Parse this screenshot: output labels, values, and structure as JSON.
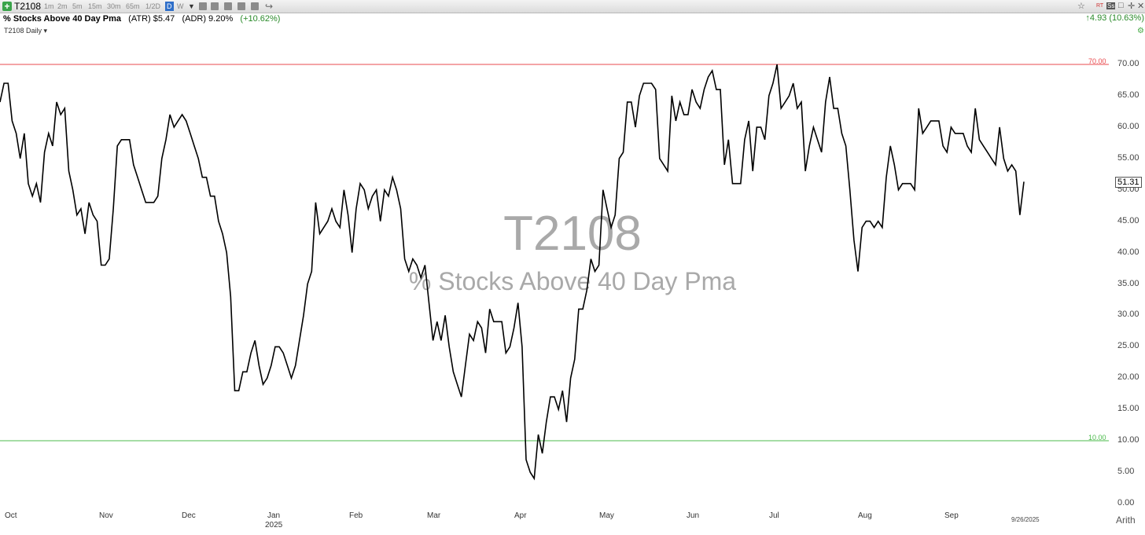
{
  "toolbar": {
    "symbol": "T2108",
    "intervals": [
      "1m",
      "2m",
      "5m",
      "15m",
      "30m",
      "65m",
      "1/2D"
    ],
    "selected_interval": "D",
    "weekly": "W",
    "right_icons": [
      "☆",
      "RT",
      "Ss",
      "□",
      "✛",
      "✕"
    ]
  },
  "header": {
    "title": "% Stocks Above 40 Day Pma",
    "atr": "(ATR) $5.47",
    "adr": "(ADR) 9.20%",
    "change": "(+10.62%)",
    "right_change": "4.93 (10.63%)",
    "subtitle": "T2108 Daily"
  },
  "watermark": {
    "symbol": "T2108",
    "name": "% Stocks Above 40 Day Pma"
  },
  "levels": {
    "upper": "70.00",
    "lower": "10.00",
    "upper_color": "#e8494d",
    "lower_color": "#4cbb4c"
  },
  "last_value": "51.31",
  "scale_mode": "Arith",
  "end_date": "9/26/2025",
  "chart_data": {
    "type": "line",
    "title": "T2108",
    "xlabel": "",
    "ylabel": "",
    "ylim": [
      0,
      72.5
    ],
    "y_ticks": [
      "70.00",
      "65.00",
      "60.00",
      "55.00",
      "50.00",
      "45.00",
      "40.00",
      "35.00",
      "30.00",
      "25.00",
      "20.00",
      "15.00",
      "10.00",
      "5.00",
      "0.00"
    ],
    "x_ticks": [
      {
        "label": "Oct",
        "year": ""
      },
      {
        "label": "Nov",
        "year": ""
      },
      {
        "label": "Dec",
        "year": ""
      },
      {
        "label": "Jan",
        "year": "2025"
      },
      {
        "label": "Feb",
        "year": ""
      },
      {
        "label": "Mar",
        "year": ""
      },
      {
        "label": "Apr",
        "year": ""
      },
      {
        "label": "May",
        "year": ""
      },
      {
        "label": "Jun",
        "year": ""
      },
      {
        "label": "Jul",
        "year": ""
      },
      {
        "label": "Aug",
        "year": ""
      },
      {
        "label": "Sep",
        "year": ""
      }
    ],
    "series": [
      {
        "color": "#000000",
        "values": [
          64,
          67,
          67,
          61,
          59,
          55,
          59,
          51,
          49,
          51,
          48,
          56,
          59,
          57,
          64,
          62,
          63,
          53,
          50,
          46,
          47,
          43,
          48,
          46,
          45,
          38,
          38,
          39,
          47,
          57,
          58,
          58,
          58,
          54,
          52,
          50,
          48,
          48,
          48,
          49,
          55,
          58,
          62,
          60,
          61,
          62,
          61,
          59,
          57,
          55,
          52,
          52,
          49,
          49,
          45,
          43,
          40,
          33,
          18,
          18,
          21,
          21,
          24,
          26,
          22,
          19,
          20,
          22,
          25,
          25,
          24,
          22,
          20,
          22,
          26,
          30,
          35,
          37,
          48,
          43,
          44,
          45,
          47,
          45,
          44,
          50,
          46,
          40,
          47,
          51,
          50,
          47,
          49,
          50,
          45,
          50,
          49,
          52,
          50,
          47,
          39,
          37,
          39,
          38,
          36,
          38,
          32,
          26,
          29,
          26,
          30,
          25,
          21,
          19,
          17,
          22,
          27,
          26,
          29,
          28,
          24,
          31,
          29,
          29,
          29,
          24,
          25,
          28,
          32,
          25,
          7,
          5,
          4,
          11,
          8,
          13,
          17,
          17,
          15,
          18,
          13,
          20,
          23,
          31,
          31,
          34,
          39,
          37,
          38,
          50,
          47,
          44,
          46,
          55,
          56,
          64,
          64,
          60,
          65,
          67,
          67,
          67,
          66,
          55,
          54,
          53,
          65,
          61,
          64,
          62,
          62,
          66,
          64,
          63,
          66,
          68,
          69,
          66,
          66,
          54,
          58,
          51,
          51,
          51,
          58,
          61,
          53,
          60,
          60,
          58,
          65,
          67,
          70,
          63,
          64,
          65,
          67,
          63,
          64,
          53,
          57,
          60,
          58,
          56,
          64,
          68,
          63,
          63,
          59,
          57,
          50,
          42,
          37,
          44,
          45,
          45,
          44,
          45,
          44,
          52,
          57,
          54,
          50,
          51,
          51,
          51,
          50,
          63,
          59,
          60,
          61,
          61,
          61,
          57,
          56,
          60,
          59,
          59,
          59,
          57,
          56,
          63,
          58,
          57,
          56,
          55,
          54,
          60,
          55,
          53,
          54,
          53,
          46,
          51.31
        ]
      }
    ]
  }
}
